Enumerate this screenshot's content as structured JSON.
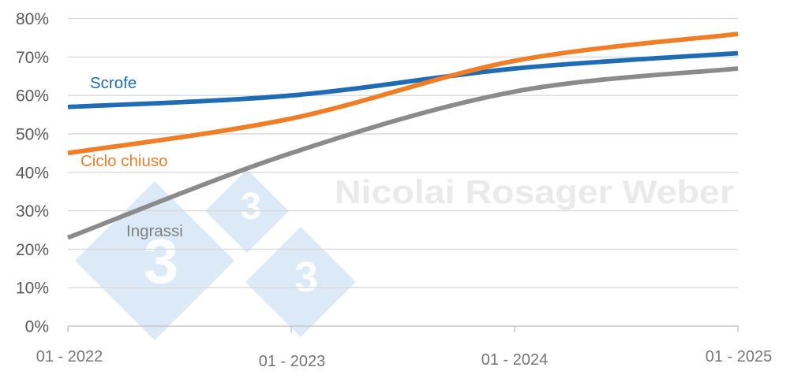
{
  "chart_data": {
    "type": "line",
    "title": "",
    "xlabel": "",
    "ylabel": "",
    "categories": [
      "01 - 2022",
      "01 - 2023",
      "01 - 2024",
      "01 - 2025"
    ],
    "series": [
      {
        "name": "Scrofe",
        "color": "#1f6cb5",
        "values": [
          57,
          60,
          67,
          71
        ]
      },
      {
        "name": "Ciclo chiuso",
        "color": "#f07e27",
        "values": [
          45,
          54,
          69,
          76
        ]
      },
      {
        "name": "Ingrassi",
        "color": "#8b8b8b",
        "values": [
          23,
          45,
          61,
          67
        ]
      }
    ],
    "ylim": [
      0,
      80
    ],
    "y_ticks": [
      80,
      70,
      60,
      50,
      40,
      30,
      20,
      10,
      0
    ],
    "y_tick_suffix": "%",
    "grid": true,
    "smoothed_lines": true,
    "legend_position": "inline-labels-near-lines"
  },
  "watermark": {
    "author_text": "Nicolai Rosager Weber",
    "logo_digit": "3"
  },
  "colors": {
    "grid_line": "#d9d9d9",
    "axis_line": "#c9c7c6",
    "y_tick_label": "#595959",
    "x_tick_label": "#757575",
    "watermark_text": "#eaeaea",
    "watermark_diamond": "#dce9f6",
    "watermark_digit": "#ffffff"
  }
}
